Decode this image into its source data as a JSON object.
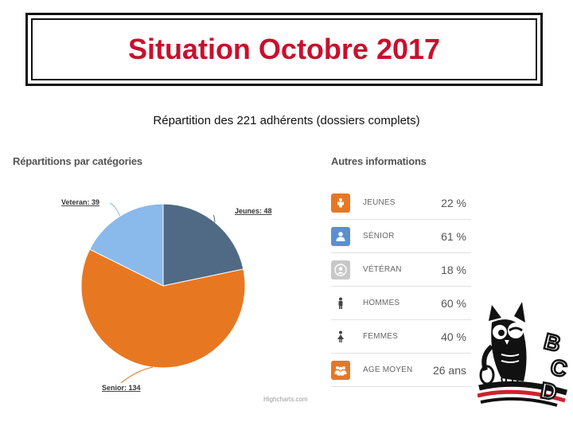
{
  "title": "Situation Octobre 2017",
  "subtitle": "Répartition des 221 adhérents (dossiers complets)",
  "chart_section_title": "Répartitions par catégories",
  "credits": "Highcharts.com",
  "chart_data": {
    "type": "pie",
    "categories": [
      "Jeunes",
      "Senior",
      "Veteran"
    ],
    "values": [
      48,
      134,
      39
    ],
    "labels": [
      "Jeunes: 48",
      "Senior: 134",
      "Veteran: 39"
    ],
    "colors": [
      "#506a85",
      "#e87722",
      "#8ab9eb"
    ]
  },
  "info": {
    "title": "Autres informations",
    "rows": [
      {
        "icon": "person-icon",
        "label": "JEUNES",
        "value": "22 %",
        "color": "#e87722"
      },
      {
        "icon": "user-icon",
        "label": "SÉNIOR",
        "value": "61 %",
        "color": "#5b8fd0"
      },
      {
        "icon": "avatar-icon",
        "label": "VÉTÉRAN",
        "value": "18 %",
        "color": "#c8c8c8"
      },
      {
        "icon": "man-icon",
        "label": "HOMMES",
        "value": "60 %",
        "color": "#ffffff"
      },
      {
        "icon": "woman-icon",
        "label": "FEMMES",
        "value": "40 %",
        "color": "#ffffff"
      },
      {
        "icon": "group-icon",
        "label": "AGE MOYEN",
        "value": "26 ans",
        "color": "#e87722"
      }
    ]
  },
  "logo_text": [
    "B",
    "C",
    "D"
  ]
}
